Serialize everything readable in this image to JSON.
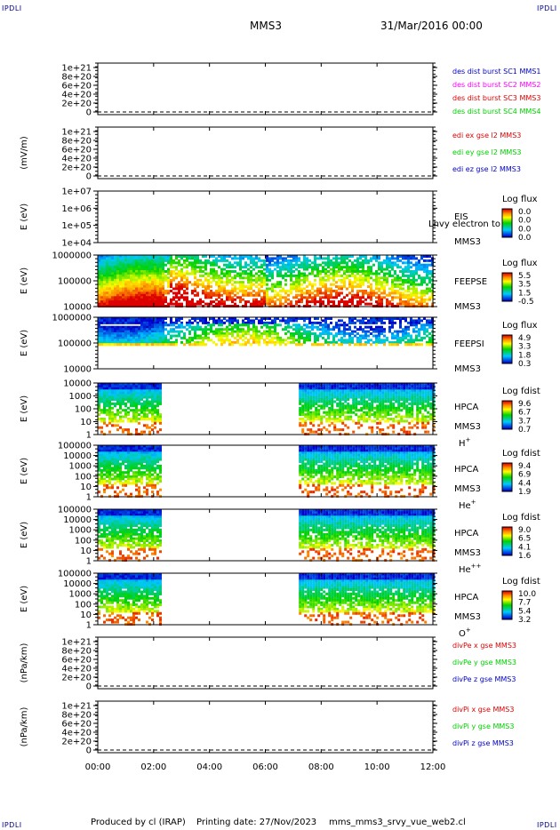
{
  "corners": {
    "tl": "IPDLI",
    "tr": "IPDLI",
    "bl": "IPDLI",
    "br": "IPDLI"
  },
  "header": {
    "spacecraft": "MMS3",
    "date": "31/Mar/2016 00:00"
  },
  "footer": {
    "produced": "Produced by cl (IRAP)",
    "printing": "Printing date: 27/Nov/2023",
    "file": "mms_mms3_srvy_vue_web2.cl"
  },
  "colors": {
    "red": "#e00000",
    "magenta": "#ff00ff",
    "green": "#00d000",
    "blue": "#0000cc",
    "bg": "#ffffff"
  },
  "chart_data": [
    {
      "type": "line",
      "name": "des dist burst",
      "ylabels": [
        "1e+21",
        "8e+20",
        "6e+20",
        "4e+20",
        "2e+20",
        "0"
      ],
      "ylabel": "",
      "legend": [
        {
          "text": "des dist burst SC1 MMS1",
          "color": "#0000cc"
        },
        {
          "text": "des dist burst SC2 MMS2",
          "color": "#ff00ff"
        },
        {
          "text": "des dist burst SC3 MMS3",
          "color": "#e00000"
        },
        {
          "text": "des dist burst SC4 MMS4",
          "color": "#00d000"
        }
      ],
      "series": []
    },
    {
      "type": "line",
      "name": "edi",
      "ylabels": [
        "1e+21",
        "8e+20",
        "6e+20",
        "4e+20",
        "2e+20",
        "0"
      ],
      "ylabel": "(mV/m)",
      "legend": [
        {
          "text": "edi ex gse l2 MMS3",
          "color": "#e00000"
        },
        {
          "text": "edi ey gse l2 MMS3",
          "color": "#00d000"
        },
        {
          "text": "edi ez gse l2 MMS3",
          "color": "#0000cc"
        }
      ],
      "series": []
    },
    {
      "type": "heatmap",
      "name": "EIS",
      "ylabels": [
        "1e+07",
        "1e+06",
        "1e+05",
        "1e+04"
      ],
      "ylabel": "E (eV)",
      "right_labels": [
        "EIS",
        "Lhvy electron to",
        "MMS3"
      ],
      "colorbar": {
        "title": "Log flux",
        "ticks": [
          "0.0",
          "0.0",
          "0.0",
          "0.0"
        ]
      },
      "coverage": []
    },
    {
      "type": "heatmap",
      "name": "FEEPSE",
      "ylabels": [
        "1000000",
        "100000",
        "10000"
      ],
      "ylabel": "E (eV)",
      "right_labels": [
        "FEEPSE",
        "MMS3"
      ],
      "colorbar": {
        "title": "Log flux",
        "ticks": [
          "5.5",
          "3.5",
          "1.5",
          "-0.5"
        ]
      },
      "coverage": [
        [
          0,
          12
        ]
      ]
    },
    {
      "type": "heatmap",
      "name": "FEEPSI",
      "ylabels": [
        "1000000",
        "100000",
        "10000"
      ],
      "ylabel": "E (eV)",
      "right_labels": [
        "FEEPSI",
        "MMS3"
      ],
      "colorbar": {
        "title": "Log flux",
        "ticks": [
          "4.9",
          "3.3",
          "1.8",
          "0.3"
        ]
      },
      "coverage": [
        [
          0,
          12
        ]
      ]
    },
    {
      "type": "heatmap",
      "name": "HPCA H+",
      "ylabels": [
        "10000",
        "1000",
        "100",
        "10",
        "1"
      ],
      "ylabel": "E (eV)",
      "right_labels": [
        "HPCA",
        "MMS3",
        "H+"
      ],
      "colorbar": {
        "title": "Log fdist",
        "ticks": [
          "9.6",
          "6.7",
          "3.7",
          "0.7"
        ]
      },
      "coverage": [
        [
          0,
          2.2
        ],
        [
          7.2,
          12
        ]
      ]
    },
    {
      "type": "heatmap",
      "name": "HPCA He+",
      "ylabels": [
        "100000",
        "10000",
        "1000",
        "100",
        "10",
        "1"
      ],
      "ylabel": "E (eV)",
      "right_labels": [
        "HPCA",
        "MMS3",
        "He+"
      ],
      "colorbar": {
        "title": "Log fdist",
        "ticks": [
          "9.4",
          "6.9",
          "4.4",
          "1.9"
        ]
      },
      "coverage": [
        [
          0,
          2.2
        ],
        [
          7.2,
          12
        ]
      ]
    },
    {
      "type": "heatmap",
      "name": "HPCA He++",
      "ylabels": [
        "100000",
        "10000",
        "1000",
        "100",
        "10",
        "1"
      ],
      "ylabel": "E (eV)",
      "right_labels": [
        "HPCA",
        "MMS3",
        "He++"
      ],
      "colorbar": {
        "title": "Log fdist",
        "ticks": [
          "9.0",
          "6.5",
          "4.1",
          "1.6"
        ]
      },
      "coverage": [
        [
          0,
          2.2
        ],
        [
          7.2,
          12
        ]
      ]
    },
    {
      "type": "heatmap",
      "name": "HPCA O+",
      "ylabels": [
        "100000",
        "10000",
        "1000",
        "100",
        "10",
        "1"
      ],
      "ylabel": "E (eV)",
      "right_labels": [
        "HPCA",
        "MMS3",
        "O+"
      ],
      "colorbar": {
        "title": "Log fdist",
        "ticks": [
          "10.0",
          "7.7",
          "5.4",
          "3.2"
        ]
      },
      "coverage": [
        [
          0,
          2.2
        ],
        [
          7.2,
          12
        ]
      ]
    },
    {
      "type": "line",
      "name": "divPe",
      "ylabels": [
        "1e+21",
        "8e+20",
        "6e+20",
        "4e+20",
        "2e+20",
        "0"
      ],
      "ylabel": "(nPa/km)",
      "legend": [
        {
          "text": "divPe x gse MMS3",
          "color": "#e00000"
        },
        {
          "text": "divPe y gse MMS3",
          "color": "#00d000"
        },
        {
          "text": "divPe z gse MMS3",
          "color": "#0000cc"
        }
      ],
      "series": []
    },
    {
      "type": "line",
      "name": "divPi",
      "ylabels": [
        "1e+21",
        "8e+20",
        "6e+20",
        "4e+20",
        "2e+20",
        "0"
      ],
      "ylabel": "(nPa/km)",
      "legend": [
        {
          "text": "divPi x gse MMS3",
          "color": "#e00000"
        },
        {
          "text": "divPi y gse MMS3",
          "color": "#00d000"
        },
        {
          "text": "divPi z gse MMS3",
          "color": "#0000cc"
        }
      ],
      "series": []
    }
  ],
  "xaxis": {
    "ticks": [
      "00:00",
      "02:00",
      "04:00",
      "06:00",
      "08:00",
      "10:00",
      "12:00"
    ],
    "range_hours": [
      0,
      12
    ]
  }
}
